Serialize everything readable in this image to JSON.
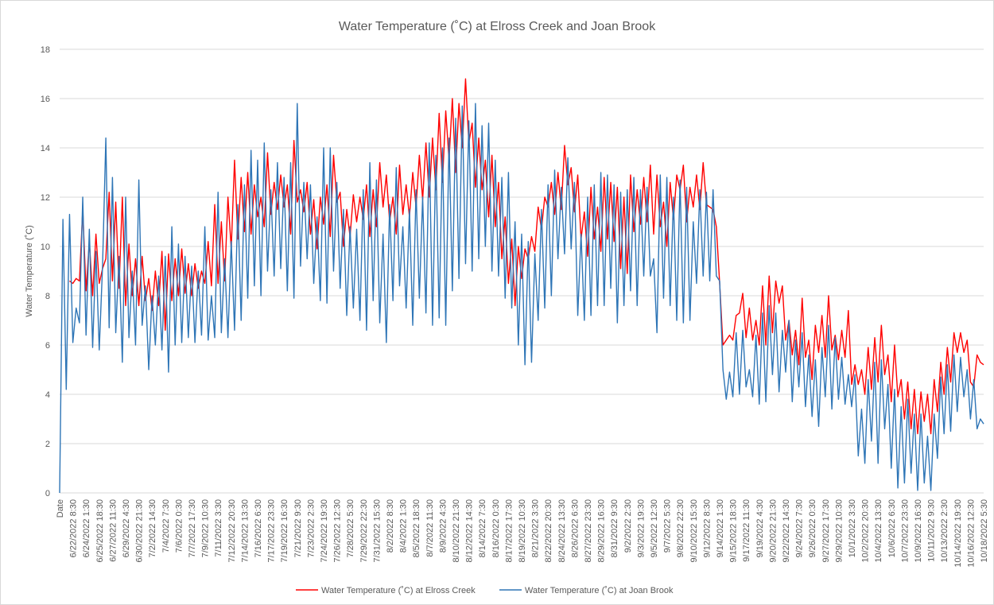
{
  "chart_data": {
    "type": "line",
    "title": "Water Temperature (˚C) at Elross Creek and Joan Brook",
    "y_label": "Water Temperature (˚C)",
    "ylim": [
      0,
      18
    ],
    "yticks": [
      0,
      2,
      4,
      6,
      8,
      10,
      12,
      14,
      16,
      18
    ],
    "grid": true,
    "legend": "bottom",
    "categories": [
      "Date",
      null,
      null,
      null,
      "6/22/2022 8:30",
      null,
      null,
      null,
      "6/24/2022 1:30",
      null,
      null,
      null,
      "6/25/2022 18:30",
      null,
      null,
      null,
      "6/27/2022 11:30",
      null,
      null,
      null,
      "6/29/2022 4:30",
      null,
      null,
      null,
      "6/30/2022 21:30",
      null,
      null,
      null,
      "7/2/2022 14:30",
      null,
      null,
      null,
      "7/4/2022 7:30",
      null,
      null,
      null,
      "7/6/2022 0:30",
      null,
      null,
      null,
      "7/7/2022 17:30",
      null,
      null,
      null,
      "7/9/2022 10:30",
      null,
      null,
      null,
      "7/11/2022 3:30",
      null,
      null,
      null,
      "7/12/2022 20:30",
      null,
      null,
      null,
      "7/14/2022 13:30",
      null,
      null,
      null,
      "7/16/2022 6:30",
      null,
      null,
      null,
      "7/17/2022 23:30",
      null,
      null,
      null,
      "7/19/2022 16:30",
      null,
      null,
      null,
      "7/21/2022 9:30",
      null,
      null,
      null,
      "7/23/2022 2:30",
      null,
      null,
      null,
      "7/24/2022 19:30",
      null,
      null,
      null,
      "7/26/2022 12:30",
      null,
      null,
      null,
      "7/28/2022 5:30",
      null,
      null,
      null,
      "7/29/2022 22:30",
      null,
      null,
      null,
      "7/31/2022 15:30",
      null,
      null,
      null,
      "8/2/2022 8:30",
      null,
      null,
      null,
      "8/4/2022 1:30",
      null,
      null,
      null,
      "8/5/2022 18:30",
      null,
      null,
      null,
      "8/7/2022 11:30",
      null,
      null,
      null,
      "8/9/2022 4:30",
      null,
      null,
      null,
      "8/10/2022 21:30",
      null,
      null,
      null,
      "8/12/2022 14:30",
      null,
      null,
      null,
      "8/14/2022 7:30",
      null,
      null,
      null,
      "8/16/2022 0:30",
      null,
      null,
      null,
      "8/17/2022 17:30",
      null,
      null,
      null,
      "8/19/2022 10:30",
      null,
      null,
      null,
      "8/21/2022 3:30",
      null,
      null,
      null,
      "8/22/2022 20:30",
      null,
      null,
      null,
      "8/24/2022 13:30",
      null,
      null,
      null,
      "8/26/2022 6:30",
      null,
      null,
      null,
      "8/27/2022 23:30",
      null,
      null,
      null,
      "8/29/2022 16:30",
      null,
      null,
      null,
      "8/31/2022 9:30",
      null,
      null,
      null,
      "9/2/2022 2:30",
      null,
      null,
      null,
      "9/3/2022 19:30",
      null,
      null,
      null,
      "9/5/2022 12:30",
      null,
      null,
      null,
      "9/7/2022 5:30",
      null,
      null,
      null,
      "9/8/2022 22:30",
      null,
      null,
      null,
      "9/10/2022 15:30",
      null,
      null,
      null,
      "9/12/2022 8:30",
      null,
      null,
      null,
      "9/14/2022 1:30",
      null,
      null,
      null,
      "9/15/2022 18:30",
      null,
      null,
      null,
      "9/17/2022 11:30",
      null,
      null,
      null,
      "9/19/2022 4:30",
      null,
      null,
      null,
      "9/20/2022 21:30",
      null,
      null,
      null,
      "9/22/2022 14:30",
      null,
      null,
      null,
      "9/24/2022 7:30",
      null,
      null,
      null,
      "9/26/2022 0:30",
      null,
      null,
      null,
      "9/27/2022 17:30",
      null,
      null,
      null,
      "9/29/2022 10:30",
      null,
      null,
      null,
      "10/1/2022 3:30",
      null,
      null,
      null,
      "10/2/2022 20:30",
      null,
      null,
      null,
      "10/4/2022 13:30",
      null,
      null,
      null,
      "10/6/2022 6:30",
      null,
      null,
      null,
      "10/7/2022 23:30",
      null,
      null,
      null,
      "10/9/2022 16:30",
      null,
      null,
      null,
      "10/11/2022 9:30",
      null,
      null,
      null,
      "10/13/2022 2:30",
      null,
      null,
      null,
      "10/14/2022 19:30",
      null,
      null,
      null,
      "10/16/2022 12:30",
      null,
      null,
      null,
      "10/18/2022 5:30"
    ],
    "series": [
      {
        "name": "Water Temperature (˚C) at Elross Creek",
        "color": "#ff0000",
        "values": [
          null,
          null,
          null,
          8.6,
          8.5,
          8.7,
          8.6,
          11.5,
          8.2,
          10.2,
          8.0,
          10.5,
          8.5,
          9.1,
          9.5,
          12.2,
          8.6,
          11.8,
          8.3,
          12.0,
          7.6,
          10.1,
          8.0,
          9.5,
          7.6,
          9.6,
          7.8,
          8.7,
          7.4,
          9.0,
          7.6,
          9.8,
          6.6,
          9.7,
          7.8,
          9.5,
          8.0,
          9.9,
          8.1,
          9.3,
          8.0,
          9.3,
          8.3,
          9.0,
          8.5,
          10.2,
          8.4,
          11.7,
          8.5,
          11.0,
          8.6,
          12.0,
          9.9,
          13.5,
          10.3,
          12.8,
          10.6,
          13.0,
          10.5,
          12.5,
          11.2,
          12.0,
          10.8,
          13.8,
          11.3,
          12.6,
          11.5,
          12.9,
          11.6,
          12.5,
          10.5,
          14.3,
          11.8,
          12.3,
          11.4,
          12.6,
          10.5,
          11.9,
          9.9,
          12.0,
          10.9,
          12.5,
          10.4,
          13.7,
          11.8,
          12.2,
          10.0,
          11.5,
          10.4,
          12.1,
          11.0,
          12.0,
          11.1,
          12.5,
          10.4,
          12.3,
          10.8,
          13.4,
          11.6,
          12.9,
          11.0,
          12.0,
          10.5,
          13.3,
          11.3,
          12.5,
          11.2,
          13.0,
          11.6,
          13.7,
          11.9,
          14.2,
          12.0,
          14.4,
          12.3,
          15.4,
          12.6,
          15.5,
          13.5,
          16.0,
          13.0,
          15.8,
          14.0,
          16.8,
          14.2,
          15.0,
          12.4,
          14.4,
          12.3,
          13.5,
          11.2,
          13.7,
          10.8,
          12.6,
          9.5,
          11.2,
          8.5,
          10.3,
          7.6,
          10.0,
          8.7,
          9.9,
          9.5,
          10.4,
          9.8,
          11.6,
          10.7,
          12.0,
          11.6,
          12.6,
          11.3,
          13.0,
          11.5,
          14.1,
          12.5,
          13.2,
          11.4,
          12.9,
          10.3,
          11.4,
          9.6,
          12.4,
          10.3,
          11.6,
          9.8,
          12.8,
          10.3,
          12.6,
          10.2,
          12.4,
          9.1,
          12.0,
          8.9,
          12.9,
          10.6,
          12.3,
          10.9,
          12.8,
          11.0,
          13.3,
          10.5,
          12.9,
          10.8,
          11.8,
          10.0,
          12.6,
          11.1,
          12.9,
          12.3,
          13.3,
          11.0,
          12.4,
          11.6,
          12.9,
          11.5,
          13.4,
          11.7,
          11.6,
          11.5,
          10.8,
          8.5,
          6.0,
          6.2,
          6.4,
          6.2,
          7.2,
          7.3,
          8.1,
          6.3,
          7.5,
          6.2,
          7.0,
          6.0,
          8.4,
          6.0,
          8.8,
          6.5,
          8.6,
          7.7,
          8.4,
          6.2,
          7.0,
          5.6,
          6.6,
          5.2,
          7.9,
          5.5,
          6.2,
          4.6,
          6.8,
          5.7,
          7.2,
          5.5,
          8.0,
          5.8,
          6.4,
          5.4,
          6.6,
          5.5,
          7.4,
          4.4,
          5.2,
          4.4,
          5.0,
          4.0,
          5.9,
          4.2,
          6.3,
          4.5,
          6.8,
          4.8,
          5.6,
          3.7,
          6.0,
          3.9,
          4.6,
          3.0,
          4.5,
          2.6,
          4.2,
          2.4,
          4.1,
          2.9,
          4.0,
          2.4,
          4.6,
          3.3,
          5.3,
          4.0,
          5.9,
          4.5,
          6.5,
          5.7,
          6.5,
          5.7,
          6.2,
          4.5,
          4.3,
          5.6,
          5.3,
          5.2
        ]
      },
      {
        "name": "Water Temperature (˚C) at Joan Brook",
        "color": "#2e75b6",
        "values": [
          0,
          11.1,
          4.2,
          11.3,
          6.1,
          7.5,
          6.9,
          12.0,
          6.4,
          10.7,
          5.9,
          9.8,
          5.8,
          9.2,
          14.4,
          6.7,
          12.8,
          6.5,
          9.6,
          5.3,
          12.0,
          6.3,
          9.0,
          6.0,
          12.7,
          6.8,
          8.4,
          5.0,
          8.0,
          6.0,
          8.8,
          5.8,
          9.6,
          4.9,
          10.8,
          6.0,
          10.1,
          6.1,
          9.6,
          6.3,
          9.2,
          6.1,
          9.0,
          6.4,
          10.8,
          6.2,
          8.0,
          6.3,
          12.2,
          6.5,
          9.5,
          6.3,
          10.2,
          6.6,
          11.7,
          7.0,
          12.5,
          7.9,
          13.9,
          8.4,
          13.5,
          8.0,
          14.2,
          9.0,
          12.3,
          8.8,
          13.4,
          9.1,
          12.8,
          8.2,
          13.4,
          7.9,
          15.8,
          9.2,
          12.6,
          9.5,
          12.5,
          8.5,
          11.2,
          7.8,
          14.0,
          7.7,
          14.0,
          9.0,
          12.6,
          8.3,
          11.5,
          7.2,
          10.8,
          7.5,
          10.7,
          7.0,
          12.3,
          6.6,
          13.4,
          7.8,
          12.7,
          6.9,
          10.5,
          6.1,
          11.7,
          7.8,
          13.2,
          8.4,
          10.8,
          7.5,
          11.5,
          6.8,
          12.3,
          7.9,
          12.0,
          7.3,
          14.2,
          6.8,
          13.7,
          7.1,
          14.0,
          6.8,
          14.4,
          8.2,
          15.2,
          8.7,
          15.7,
          9.3,
          15.1,
          9.0,
          15.8,
          9.5,
          14.9,
          10.0,
          15.0,
          9.0,
          13.5,
          8.8,
          12.8,
          7.9,
          13.0,
          7.5,
          11.0,
          6.0,
          10.5,
          5.2,
          10.2,
          5.3,
          9.7,
          7.0,
          11.5,
          7.5,
          12.5,
          8.0,
          13.1,
          9.5,
          12.4,
          9.7,
          13.6,
          9.9,
          12.6,
          7.2,
          10.5,
          7.0,
          12.0,
          7.2,
          12.5,
          7.6,
          13.0,
          7.6,
          12.9,
          8.3,
          12.5,
          6.9,
          12.2,
          7.6,
          12.3,
          8.2,
          12.8,
          7.6,
          12.3,
          8.8,
          12.4,
          8.8,
          9.5,
          6.5,
          12.9,
          7.9,
          12.8,
          7.6,
          12.0,
          7.0,
          12.7,
          6.9,
          12.4,
          7.0,
          11.0,
          8.5,
          12.3,
          8.8,
          12.2,
          8.6,
          12.3,
          8.8,
          8.6,
          5.0,
          3.8,
          4.9,
          3.9,
          6.5,
          4.0,
          6.6,
          4.3,
          5.0,
          3.9,
          6.4,
          3.6,
          7.3,
          3.7,
          7.6,
          4.8,
          7.3,
          4.1,
          6.6,
          4.9,
          7.0,
          3.7,
          6.2,
          4.3,
          6.5,
          3.5,
          5.6,
          3.1,
          5.4,
          2.7,
          5.9,
          3.9,
          6.8,
          3.4,
          6.3,
          3.8,
          5.5,
          3.6,
          4.8,
          3.5,
          4.8,
          1.5,
          3.4,
          1.2,
          4.6,
          2.1,
          5.3,
          1.2,
          5.4,
          2.6,
          4.4,
          1.0,
          4.2,
          0.2,
          3.5,
          0.4,
          3.8,
          0.8,
          3.2,
          0.1,
          3.2,
          0.4,
          2.3,
          0.1,
          3.2,
          1.4,
          4.7,
          2.4,
          5.2,
          2.5,
          5.6,
          3.3,
          5.5,
          3.9,
          5.0,
          3.0,
          4.6,
          2.6,
          3.0,
          2.8
        ]
      }
    ]
  }
}
